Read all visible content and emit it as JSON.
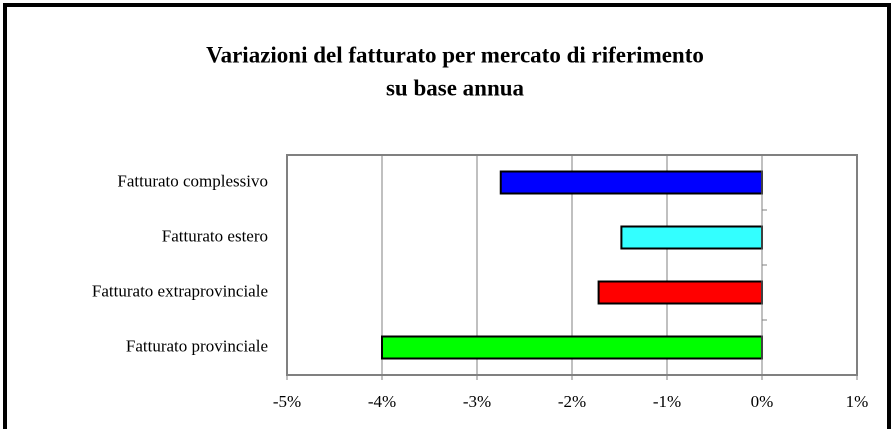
{
  "chart_data": {
    "type": "bar",
    "orientation": "horizontal",
    "title": [
      "Variazioni del fatturato per mercato di riferimento",
      "su base annua"
    ],
    "categories": [
      "Fatturato complessivo",
      "Fatturato estero",
      "Fatturato extraprovinciale",
      "Fatturato provinciale"
    ],
    "values": [
      -2.75,
      -1.48,
      -1.72,
      -4.0
    ],
    "colors": [
      "#0000ff",
      "#33ffff",
      "#ff0000",
      "#00ff00"
    ],
    "xlim": [
      -5,
      1
    ],
    "xticks": [
      {
        "value": -5,
        "label": "-5%"
      },
      {
        "value": -4,
        "label": "-4%"
      },
      {
        "value": -3,
        "label": "-3%"
      },
      {
        "value": -2,
        "label": "-2%"
      },
      {
        "value": -1,
        "label": "-1%"
      },
      {
        "value": 0,
        "label": "0%"
      },
      {
        "value": 1,
        "label": "1%"
      }
    ],
    "grid": true
  }
}
